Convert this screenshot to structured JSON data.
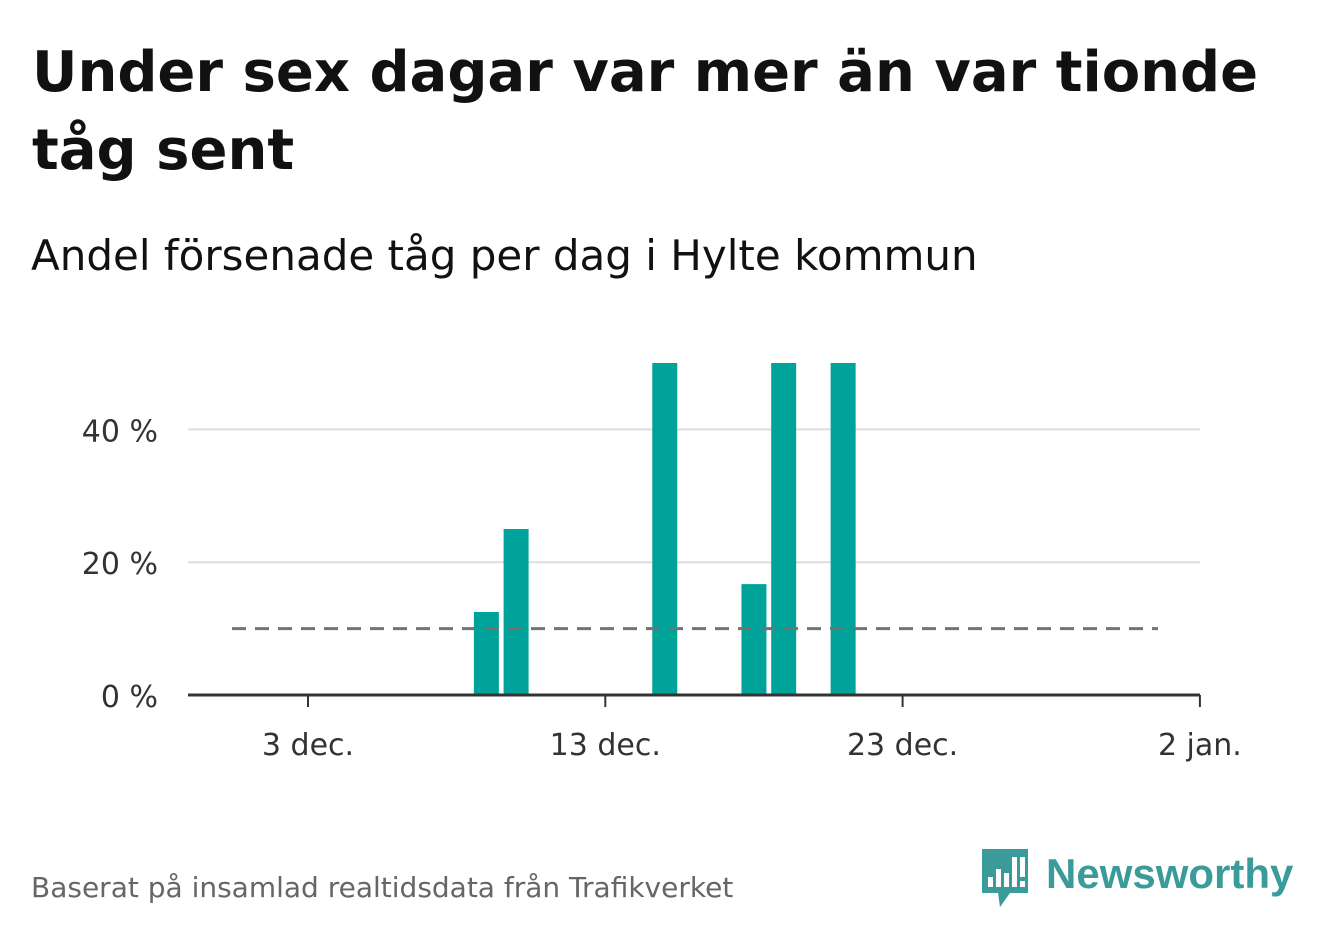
{
  "header": {
    "title": "Under sex dagar var mer än var tionde tåg sent",
    "subtitle": "Andel försenade tåg per dag i Hylte kommun"
  },
  "footer": {
    "source": "Baserat på insamlad realtidsdata från Trafikverket",
    "brand": "Newsworthy"
  },
  "colors": {
    "bar": "#00a39a",
    "reference_line": "#737373",
    "gridline": "#dddddd",
    "axis": "#333333",
    "brand": "#3b9a9a"
  },
  "chart_data": {
    "type": "bar",
    "title": "Under sex dagar var mer än var tionde tåg sent",
    "subtitle": "Andel försenade tåg per dag i Hylte kommun",
    "xlabel": "",
    "ylabel": "",
    "x_ticks": [
      "3 dec.",
      "13 dec.",
      "23 dec.",
      "2 jan."
    ],
    "y_ticks": [
      "0 %",
      "20 %",
      "40 %"
    ],
    "ylim": [
      0,
      50
    ],
    "grid": true,
    "unit": "%",
    "reference_line": {
      "value": 10,
      "style": "dashed"
    },
    "series": [
      {
        "values": [
          {
            "date": "2023-12-09",
            "value": 12.5
          },
          {
            "date": "2023-12-10",
            "value": 25
          },
          {
            "date": "2023-12-15",
            "value": 50
          },
          {
            "date": "2023-12-18",
            "value": 16.7
          },
          {
            "date": "2023-12-19",
            "value": 50
          },
          {
            "date": "2023-12-21",
            "value": 50
          }
        ]
      }
    ]
  }
}
